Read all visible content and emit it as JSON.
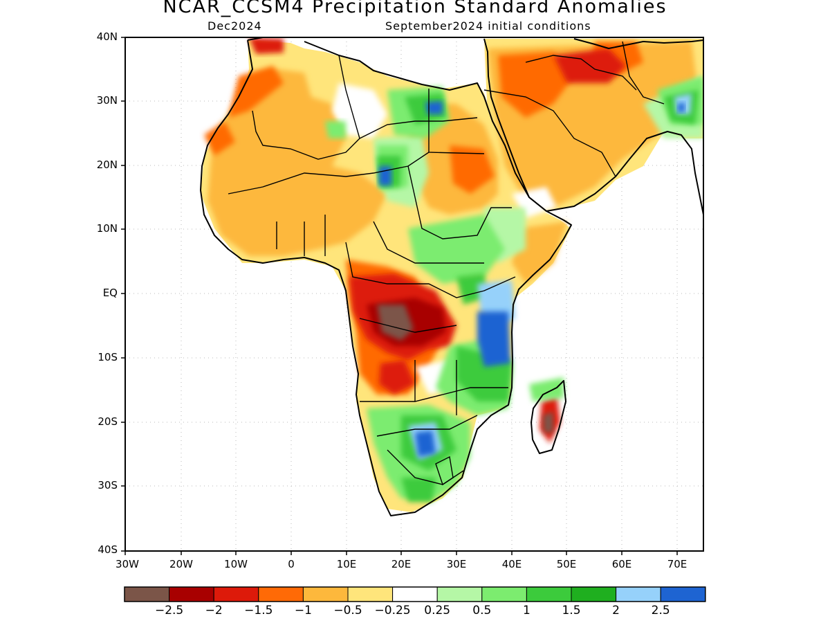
{
  "title": "NCAR_CCSM4 Precipitation Standard Anomalies",
  "subtitle_left": "Dec2024",
  "subtitle_right": "September2024 initial conditions",
  "lat_labels": [
    "40N",
    "30N",
    "20N",
    "10N",
    "EQ",
    "10S",
    "20S",
    "30S",
    "40S"
  ],
  "lon_labels": [
    "30W",
    "20W",
    "10W",
    "0",
    "10E",
    "20E",
    "30E",
    "40E",
    "50E",
    "60E",
    "70E"
  ],
  "colorbar": {
    "colors": [
      "#7b5548",
      "#a80000",
      "#dd1a0a",
      "#ff6a06",
      "#fdb83c",
      "#ffe57b",
      "#ffffff",
      "#b5f7a6",
      "#7cec6f",
      "#3ccb3c",
      "#1faf1f",
      "#96d1fa",
      "#1e64d2"
    ],
    "labels": [
      "−2.5",
      "−2",
      "−1.5",
      "−1",
      "−0.5",
      "−0.25",
      "0.25",
      "0.5",
      "1",
      "1.5",
      "2",
      "2.5"
    ]
  }
}
